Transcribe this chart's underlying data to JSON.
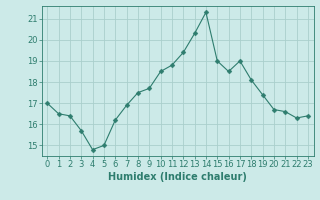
{
  "x": [
    0,
    1,
    2,
    3,
    4,
    5,
    6,
    7,
    8,
    9,
    10,
    11,
    12,
    13,
    14,
    15,
    16,
    17,
    18,
    19,
    20,
    21,
    22,
    23
  ],
  "y": [
    17.0,
    16.5,
    16.4,
    15.7,
    14.8,
    15.0,
    16.2,
    16.9,
    17.5,
    17.7,
    18.5,
    18.8,
    19.4,
    20.3,
    21.3,
    19.0,
    18.5,
    19.0,
    18.1,
    17.4,
    16.7,
    16.6,
    16.3,
    16.4
  ],
  "line_color": "#2e7d6e",
  "marker": "D",
  "marker_size": 2.5,
  "bg_color": "#cceae8",
  "grid_color": "#aacfcc",
  "axis_color": "#2e7d6e",
  "xlabel": "Humidex (Indice chaleur)",
  "ylim": [
    14.5,
    21.6
  ],
  "xlim": [
    -0.5,
    23.5
  ],
  "yticks": [
    15,
    16,
    17,
    18,
    19,
    20,
    21
  ],
  "xticks": [
    0,
    1,
    2,
    3,
    4,
    5,
    6,
    7,
    8,
    9,
    10,
    11,
    12,
    13,
    14,
    15,
    16,
    17,
    18,
    19,
    20,
    21,
    22,
    23
  ],
  "font_color": "#2e7d6e",
  "xlabel_fontsize": 7,
  "tick_fontsize": 6
}
